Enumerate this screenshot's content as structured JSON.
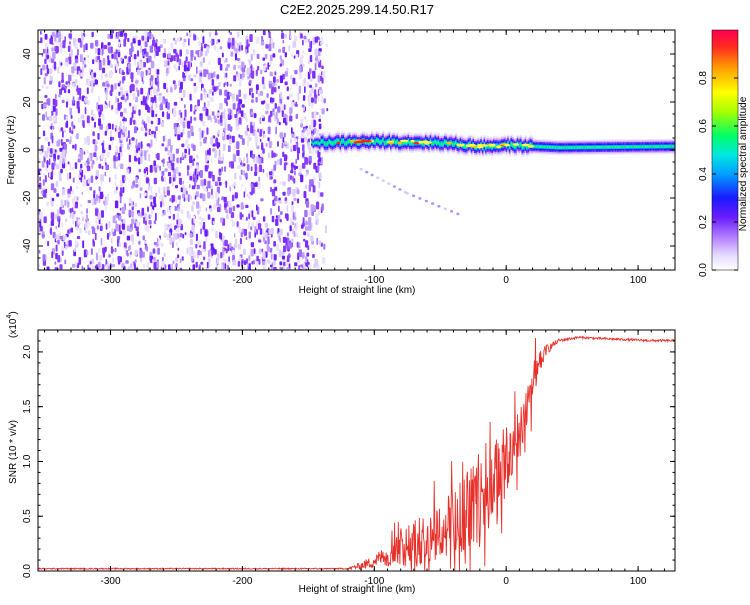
{
  "title": "C2E2.2025.299.14.50.R17",
  "chart_data": [
    {
      "type": "heatmap",
      "name": "spectrogram",
      "xlabel": "Height of straight line (km)",
      "ylabel": "Frequency (Hz)",
      "xlim": [
        -355,
        128
      ],
      "ylim": [
        -50,
        50
      ],
      "xticks": [
        -300,
        -200,
        -100,
        0,
        100
      ],
      "yticks": [
        -40,
        -20,
        0,
        20,
        40
      ],
      "colorbar": {
        "label": "Normalized spectral amplitude",
        "range": [
          0,
          1
        ],
        "ticks": [
          "0.0",
          "0.2",
          "0.4",
          "0.6",
          "0.8"
        ],
        "tick_values": [
          0,
          0.2,
          0.4,
          0.6,
          0.8
        ],
        "colormap": [
          "#ffffff",
          "#c9b3ff",
          "#7a2cff",
          "#1d1dff",
          "#00c8ff",
          "#00ff66",
          "#ffff00",
          "#ff8800",
          "#ff0033"
        ]
      },
      "features": {
        "noise_region_km": [
          -355,
          -140
        ],
        "carrier_start_km": -148,
        "carrier_freq_hz": [
          [
            -148,
            3
          ],
          [
            -100,
            3.5
          ],
          [
            -50,
            3
          ],
          [
            -20,
            1.5
          ],
          [
            0,
            2
          ],
          [
            40,
            1
          ],
          [
            128,
            1.5
          ]
        ],
        "diagonal_trace_km_hz": [
          [
            -110,
            -8
          ],
          [
            -75,
            -18
          ],
          [
            -35,
            -27
          ]
        ]
      }
    },
    {
      "type": "line",
      "name": "snr",
      "xlabel": "Height of straight line (km)",
      "ylabel": "SNR (10 * v/v)",
      "multiplier_label": "(x10",
      "multiplier_exp": "4",
      "xlim": [
        -355,
        128
      ],
      "ylim": [
        0,
        2.2
      ],
      "xticks": [
        -300,
        -200,
        -100,
        0,
        100
      ],
      "yticks": [
        "0.0",
        "0.5",
        "1.0",
        "1.5",
        "2.0"
      ],
      "ytick_values": [
        0,
        0.5,
        1.0,
        1.5,
        2.0
      ],
      "color": "#e8302a",
      "envelope": {
        "x": [
          -355,
          -120,
          -105,
          -95,
          -85,
          -75,
          -65,
          -55,
          -45,
          -35,
          -25,
          -15,
          -5,
          5,
          15,
          22,
          30,
          40,
          55,
          70,
          90,
          110,
          128
        ],
        "base": [
          0.02,
          0.02,
          0.05,
          0.1,
          0.15,
          0.18,
          0.2,
          0.25,
          0.3,
          0.4,
          0.5,
          0.6,
          0.8,
          1.0,
          1.4,
          1.75,
          2.0,
          2.1,
          2.13,
          2.12,
          2.11,
          2.1,
          2.1
        ],
        "noise": [
          0.01,
          0.01,
          0.1,
          0.15,
          0.3,
          0.4,
          0.45,
          0.55,
          0.6,
          0.7,
          0.8,
          0.9,
          0.7,
          0.6,
          0.5,
          0.3,
          0.1,
          0.03,
          0.02,
          0.02,
          0.02,
          0.02,
          0.02
        ]
      }
    }
  ]
}
